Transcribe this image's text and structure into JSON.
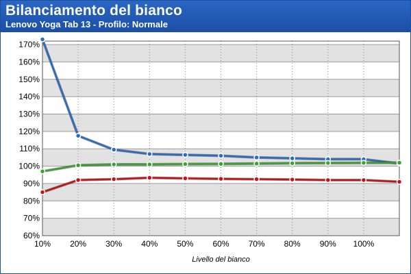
{
  "chart_data": {
    "type": "line",
    "title": "Bilanciamento del bianco",
    "subtitle": "Lenovo Yoga Tab 13 - Profilo: Normale",
    "xlabel": "Livello del bianco",
    "ylabel": "",
    "x_tick_labels": [
      "10%",
      "20%",
      "30%",
      "40%",
      "50%",
      "60%",
      "70%",
      "80%",
      "90%",
      "100%"
    ],
    "y_tick_labels": [
      "60%",
      "70%",
      "80%",
      "90%",
      "100%",
      "110%",
      "120%",
      "130%",
      "140%",
      "150%",
      "160%",
      "170%"
    ],
    "ylim": [
      60,
      172
    ],
    "grid": true,
    "legend": "none",
    "series": [
      {
        "color": "#2b6cc0",
        "values": [
          173,
          117.5,
          109.5,
          107,
          106.5,
          106,
          105,
          104.5,
          104,
          104,
          101.5
        ]
      },
      {
        "color": "#3aa32e",
        "values": [
          97,
          100.5,
          101,
          101,
          101.2,
          101.3,
          101.5,
          101.7,
          101.8,
          101.9,
          102
        ]
      },
      {
        "color": "#c0141b",
        "values": [
          85,
          92,
          92.5,
          93.3,
          93,
          92.7,
          92.5,
          92.3,
          92,
          92,
          91
        ]
      }
    ]
  }
}
